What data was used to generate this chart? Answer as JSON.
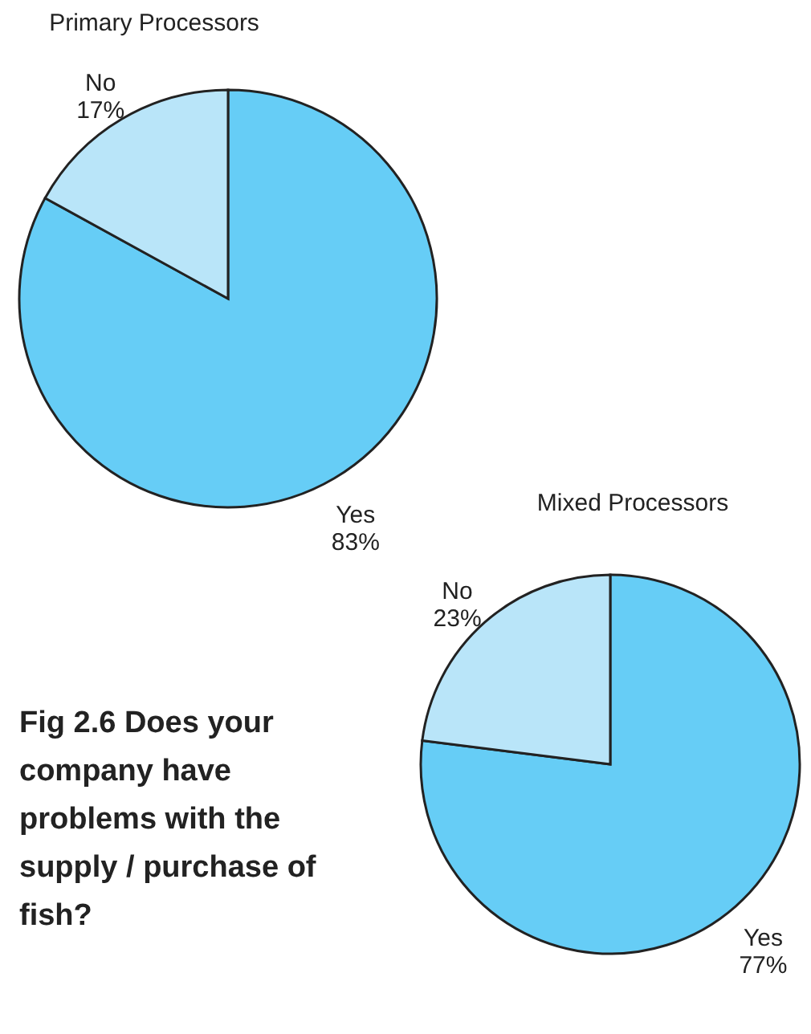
{
  "chart_data": [
    {
      "type": "pie",
      "title": "Primary Processors",
      "categories": [
        "Yes",
        "No"
      ],
      "values": [
        83,
        17
      ],
      "colors": [
        "#66cdf6",
        "#b9e5f9"
      ],
      "value_labels": [
        "83%",
        "17%"
      ]
    },
    {
      "type": "pie",
      "title": "Mixed Processors",
      "categories": [
        "Yes",
        "No"
      ],
      "values": [
        77,
        23
      ],
      "colors": [
        "#66cdf6",
        "#b9e5f9"
      ],
      "value_labels": [
        "77%",
        "23%"
      ],
      "annotations": [
        "Fig 2.6 Does your company have problems with the supply / purchase of fish?"
      ]
    }
  ]
}
